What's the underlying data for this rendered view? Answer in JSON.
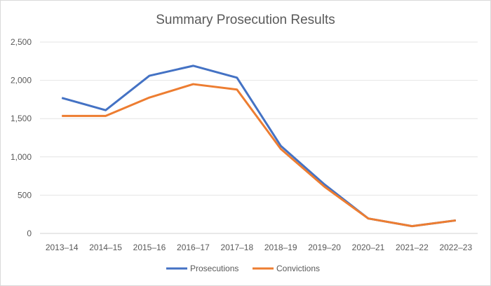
{
  "chart_data": {
    "type": "line",
    "title": "Summary Prosecution Results",
    "xlabel": "",
    "ylabel": "",
    "categories": [
      "2013–14",
      "2014–15",
      "2015–16",
      "2016–17",
      "2017–18",
      "2018–19",
      "2019–20",
      "2020–21",
      "2021–22",
      "2022–23"
    ],
    "ylim": [
      0,
      2500
    ],
    "yticks": [
      0,
      500,
      1000,
      1500,
      2000,
      2500
    ],
    "ytick_labels": [
      "0",
      "500",
      "1,000",
      "1,500",
      "2,000",
      "2,500"
    ],
    "grid": true,
    "legend_position": "bottom",
    "series": [
      {
        "name": "Prosecutions",
        "color": "#4472c4",
        "values": [
          1770,
          1610,
          2060,
          2190,
          2035,
          1145,
          640,
          195,
          95,
          170
        ]
      },
      {
        "name": "Convictions",
        "color": "#ed7d31",
        "values": [
          1535,
          1535,
          1775,
          1950,
          1880,
          1105,
          610,
          195,
          95,
          170
        ]
      }
    ]
  }
}
